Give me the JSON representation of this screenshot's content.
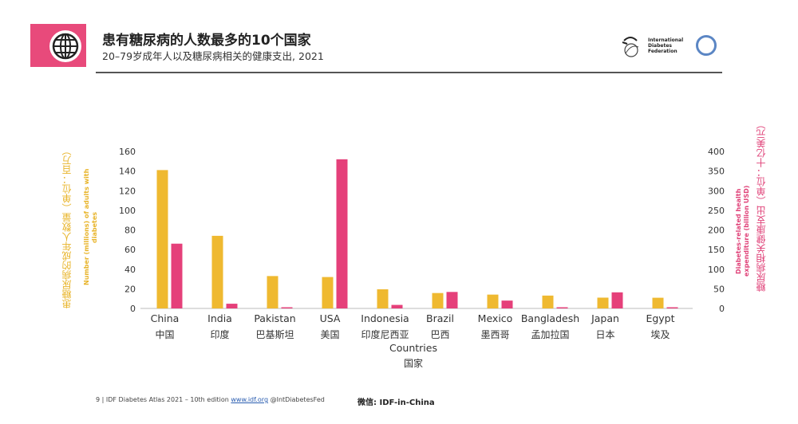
{
  "header": {
    "title": "患有糖尿病的人数最多的10个国家",
    "subtitle": "20–79岁成年人以及糖尿病相关的健康支出, 2021",
    "org_name": "International Diabetes Federation"
  },
  "colors": {
    "accent": "#e84a7b",
    "count_bar": "#efb930",
    "spend_bar": "#e5407a",
    "ring": "#5b86c4"
  },
  "axis_labels": {
    "left_cn": "患糖尿病的成年人数量（单位：百万）",
    "left_en": "Number (millions) of adults with diabetes",
    "right_en": "Diabetes-related health expenditure (billion USD)",
    "right_cn": "糖尿病相关健康支出（单位：十亿美元）",
    "x_en": "Countries",
    "x_cn": "国家"
  },
  "chart_data": {
    "type": "bar",
    "categories": [
      "China",
      "India",
      "Pakistan",
      "USA",
      "Indonesia",
      "Brazil",
      "Mexico",
      "Bangladesh",
      "Japan",
      "Egypt"
    ],
    "categories_cn": [
      "中国",
      "印度",
      "巴基斯坦",
      "美国",
      "印度尼西亚",
      "巴西",
      "墨西哥",
      "孟加拉国",
      "日本",
      "埃及"
    ],
    "series": [
      {
        "name": "Number (millions) of adults with diabetes",
        "axis": "left",
        "values": [
          141,
          74,
          33,
          32,
          19.5,
          15.7,
          14.1,
          13.1,
          11,
          10.9
        ]
      },
      {
        "name": "Diabetes-related health expenditure (billion USD)",
        "axis": "right",
        "values": [
          165,
          12,
          3,
          380,
          9,
          42,
          20,
          3,
          41,
          3
        ]
      }
    ],
    "left_ylim": [
      0,
      160
    ],
    "left_ticks": [
      0,
      20,
      40,
      60,
      80,
      100,
      120,
      140,
      160
    ],
    "right_ylim": [
      0,
      400
    ],
    "right_ticks": [
      0,
      50,
      100,
      150,
      200,
      250,
      300,
      350,
      400
    ],
    "xlabel": "Countries",
    "xlabel_cn": "国家"
  },
  "footer": {
    "page": "9",
    "sep": "|",
    "text": "IDF Diabetes Atlas 2021 – 10th edition",
    "link": "www.idf.org",
    "handle": "@IntDiabetesFed",
    "wechat": "微信:  IDF-in-China"
  }
}
